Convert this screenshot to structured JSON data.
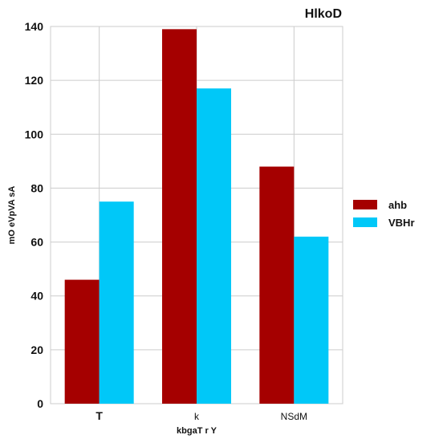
{
  "chart_data": {
    "type": "bar",
    "title": "HlkoD",
    "xlabel": "kbgaT r Y",
    "ylabel": "mO eVpVA sA",
    "categories": [
      "T",
      "k",
      "NSdM"
    ],
    "series": [
      {
        "name": "ahb",
        "values": [
          46,
          139,
          88
        ],
        "color": "#a50000"
      },
      {
        "name": "VBHr",
        "values": [
          75,
          117,
          62
        ],
        "color": "#00c8f8"
      }
    ],
    "ylim": [
      0,
      140
    ],
    "yticks": [
      0,
      20,
      40,
      60,
      80,
      100,
      120,
      140
    ],
    "grid": true,
    "legend_position": "right"
  }
}
